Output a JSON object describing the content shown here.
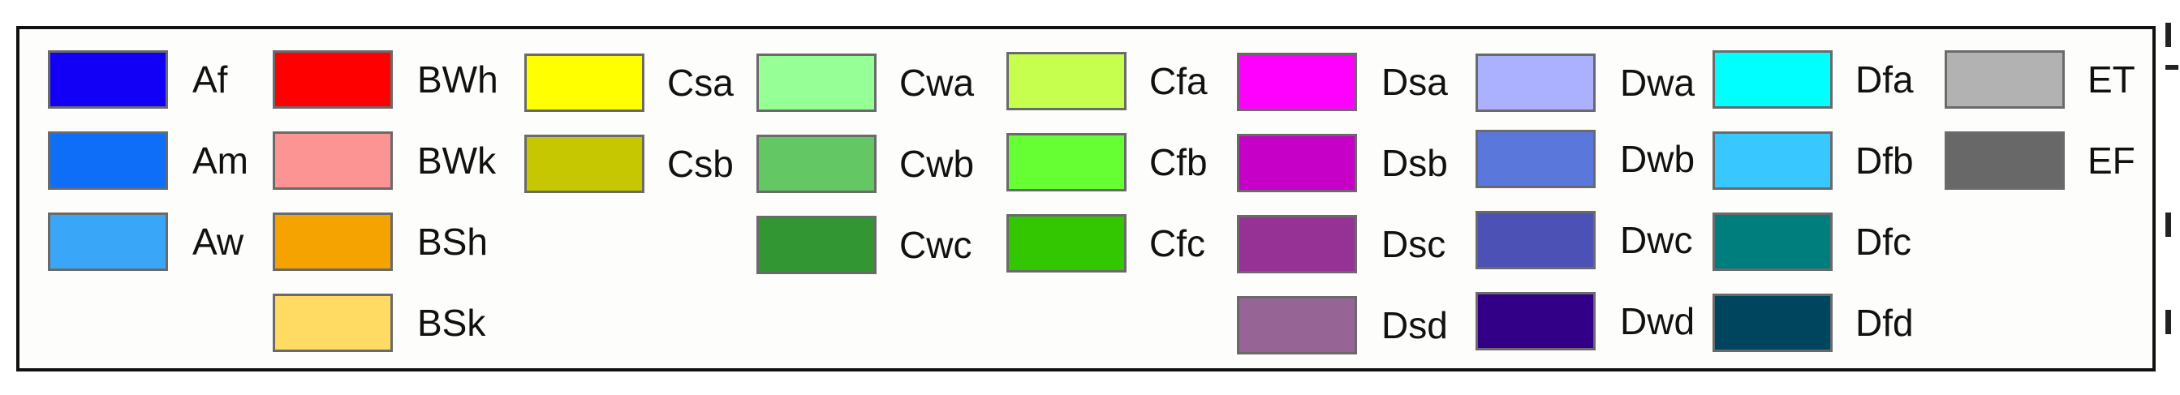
{
  "legend": {
    "columns": [
      {
        "items": [
          {
            "code": "Af",
            "color": "#1100f5"
          },
          {
            "code": "Am",
            "color": "#0e6ef7"
          },
          {
            "code": "Aw",
            "color": "#3aa6f7"
          }
        ]
      },
      {
        "items": [
          {
            "code": "BWh",
            "color": "#ff0000"
          },
          {
            "code": "BWk",
            "color": "#fd9494"
          },
          {
            "code": "BSh",
            "color": "#f5a300"
          },
          {
            "code": "BSk",
            "color": "#ffdb63"
          }
        ]
      },
      {
        "items": [
          {
            "code": "Csa",
            "color": "#ffff00"
          },
          {
            "code": "Csb",
            "color": "#c7c700"
          }
        ]
      },
      {
        "items": [
          {
            "code": "Cwa",
            "color": "#96ff96"
          },
          {
            "code": "Cwb",
            "color": "#63c764"
          },
          {
            "code": "Cwc",
            "color": "#329633"
          }
        ]
      },
      {
        "items": [
          {
            "code": "Cfa",
            "color": "#c6ff4e"
          },
          {
            "code": "Cfb",
            "color": "#66ff33"
          },
          {
            "code": "Cfc",
            "color": "#33c701"
          }
        ]
      },
      {
        "items": [
          {
            "code": "Dsa",
            "color": "#ff00ff"
          },
          {
            "code": "Dsb",
            "color": "#c600c7"
          },
          {
            "code": "Dsc",
            "color": "#963295"
          },
          {
            "code": "Dsd",
            "color": "#966495"
          }
        ]
      },
      {
        "items": [
          {
            "code": "Dwa",
            "color": "#abb1ff"
          },
          {
            "code": "Dwb",
            "color": "#5a77db"
          },
          {
            "code": "Dwc",
            "color": "#4c51b5"
          },
          {
            "code": "Dwd",
            "color": "#320087"
          }
        ]
      },
      {
        "items": [
          {
            "code": "Dfa",
            "color": "#00ffff"
          },
          {
            "code": "Dfb",
            "color": "#38c7ff"
          },
          {
            "code": "Dfc",
            "color": "#007e7d"
          },
          {
            "code": "Dfd",
            "color": "#00455e"
          }
        ]
      },
      {
        "items": [
          {
            "code": "ET",
            "color": "#b2b2b2"
          },
          {
            "code": "EF",
            "color": "#686868"
          }
        ]
      }
    ]
  }
}
